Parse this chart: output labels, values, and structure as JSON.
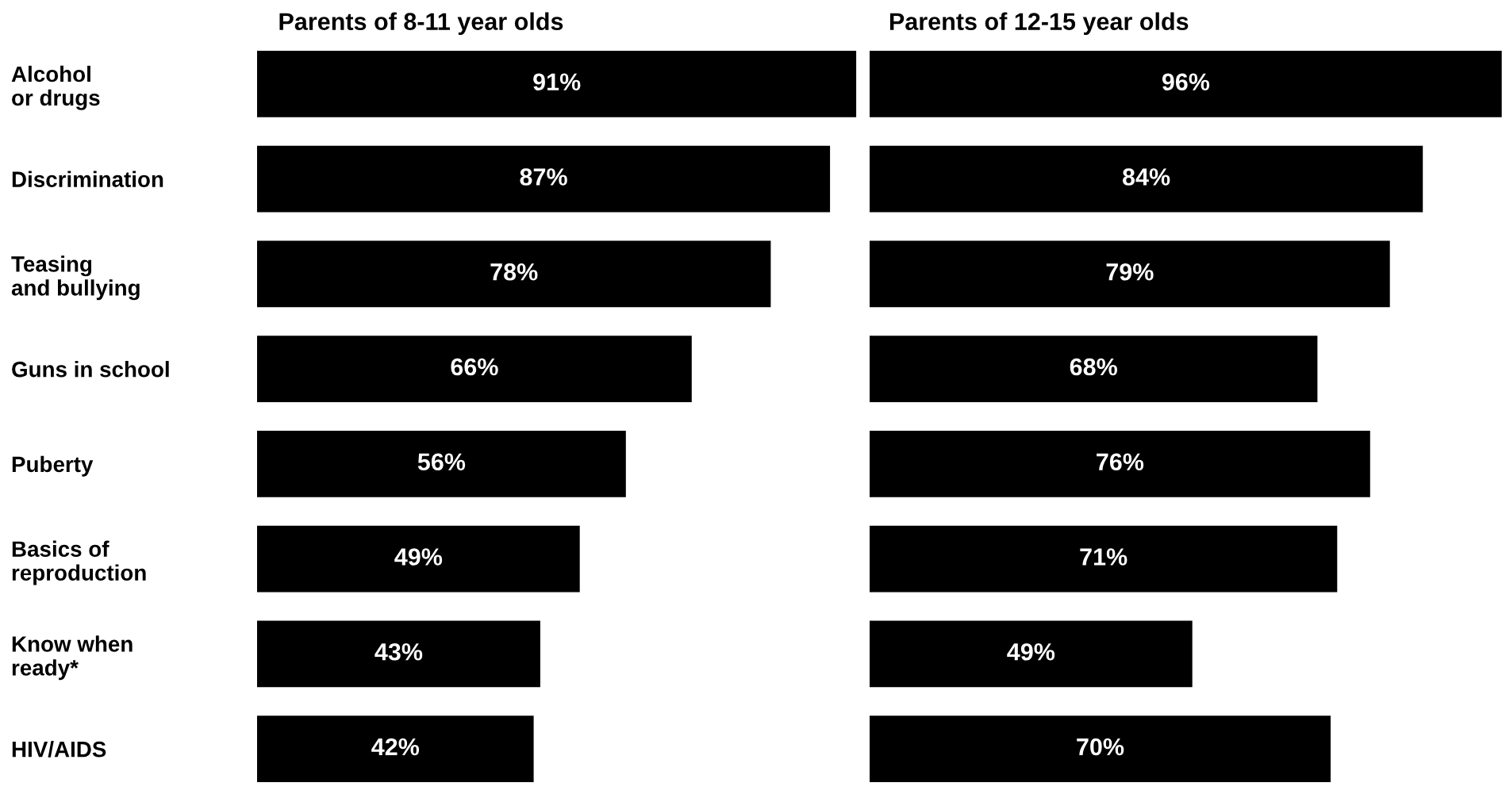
{
  "chart_data": [
    {
      "type": "bar",
      "orientation": "horizontal",
      "title": "Parents of 8-11 year olds",
      "categories": [
        "Alcohol\nor drugs",
        "Discrimination",
        "Teasing\nand bullying",
        "Guns in school",
        "Puberty",
        "Basics of\nreproduction",
        "Know when\nready*",
        "HIV/AIDS"
      ],
      "values": [
        91,
        87,
        78,
        66,
        56,
        49,
        43,
        42
      ],
      "value_labels": [
        "91%",
        "87%",
        "78%",
        "66%",
        "56%",
        "49%",
        "43%",
        "42%"
      ],
      "color": "#000000",
      "tick_labels": "y",
      "grid": false,
      "legend": false
    },
    {
      "type": "bar",
      "orientation": "horizontal",
      "title": "Parents of 12-15 year olds",
      "categories": [
        null,
        null,
        null,
        null,
        null,
        null,
        null,
        null
      ],
      "values": [
        96,
        84,
        79,
        68,
        76,
        71,
        49,
        70
      ],
      "value_labels": [
        "96%",
        "84%",
        "79%",
        "68%",
        "76%",
        "71%",
        "49%",
        "70%"
      ],
      "color": "#000000",
      "tick_labels": false,
      "grid": false,
      "legend": false
    }
  ]
}
